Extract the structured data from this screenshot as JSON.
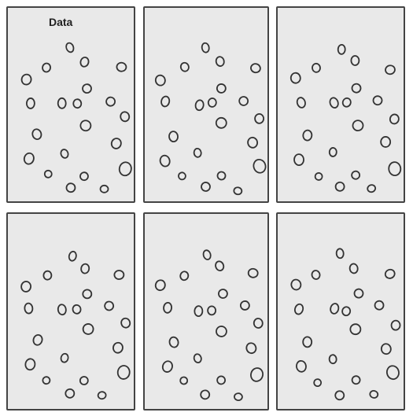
{
  "panels": [
    {
      "label": "Data"
    },
    {
      "label": ""
    },
    {
      "label": ""
    },
    {
      "label": ""
    },
    {
      "label": ""
    },
    {
      "label": ""
    }
  ],
  "colors": {
    "panel_fill": "#e9e9e9",
    "panel_border": "#444444",
    "dot_stroke": "#333333"
  }
}
